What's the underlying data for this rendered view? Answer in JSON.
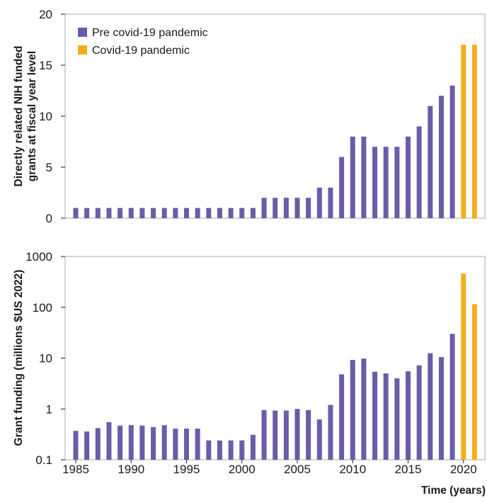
{
  "chart_data": [
    {
      "type": "bar",
      "ylabel_lines": [
        "Directly related NIH funded",
        "grants at fiscal year level"
      ],
      "ylim": [
        0,
        20
      ],
      "yticks": [
        0,
        5,
        10,
        15,
        20
      ],
      "grid": false,
      "legend_position": "top-left",
      "legend": [
        {
          "name": "Pre covid-19 pandemic",
          "color": "#6b5ba8"
        },
        {
          "name": "Covid-19 pandemic",
          "color": "#f5ad1b"
        }
      ],
      "x": [
        1985,
        1986,
        1987,
        1988,
        1989,
        1990,
        1991,
        1992,
        1993,
        1994,
        1995,
        1996,
        1997,
        1998,
        1999,
        2000,
        2001,
        2002,
        2003,
        2004,
        2005,
        2006,
        2007,
        2008,
        2009,
        2010,
        2011,
        2012,
        2013,
        2014,
        2015,
        2016,
        2017,
        2018,
        2019,
        2020,
        2021
      ],
      "series": [
        {
          "name": "Pre covid-19 pandemic",
          "color": "#6b5ba8",
          "values": [
            1,
            1,
            1,
            1,
            1,
            1,
            1,
            1,
            1,
            1,
            1,
            1,
            1,
            1,
            1,
            1,
            1,
            2,
            2,
            2,
            2,
            2,
            3,
            3,
            6,
            8,
            8,
            7,
            7,
            7,
            8,
            9,
            11,
            12,
            13,
            null,
            null
          ]
        },
        {
          "name": "Covid-19 pandemic",
          "color": "#f5ad1b",
          "values": [
            null,
            null,
            null,
            null,
            null,
            null,
            null,
            null,
            null,
            null,
            null,
            null,
            null,
            null,
            null,
            null,
            null,
            null,
            null,
            null,
            null,
            null,
            null,
            null,
            null,
            null,
            null,
            null,
            null,
            null,
            null,
            null,
            null,
            null,
            null,
            17,
            17
          ]
        }
      ]
    },
    {
      "type": "bar",
      "ylabel": "Grant funding (millions $US 2022)",
      "xlabel": "Time (years)",
      "yscale": "log",
      "ylim": [
        0.1,
        1000
      ],
      "yticks": [
        0.1,
        1,
        10,
        100,
        1000
      ],
      "ytick_labels": [
        "0.1",
        "1",
        "10",
        "100",
        "1000"
      ],
      "grid": false,
      "xticks": [
        1985,
        1990,
        1995,
        2000,
        2005,
        2010,
        2015,
        2020
      ],
      "xtick_labels": [
        "1985",
        "1990",
        "1995",
        "2000",
        "2005",
        "2010",
        "2015",
        "2020"
      ],
      "x": [
        1985,
        1986,
        1987,
        1988,
        1989,
        1990,
        1991,
        1992,
        1993,
        1994,
        1995,
        1996,
        1997,
        1998,
        1999,
        2000,
        2001,
        2002,
        2003,
        2004,
        2005,
        2006,
        2007,
        2008,
        2009,
        2010,
        2011,
        2012,
        2013,
        2014,
        2015,
        2016,
        2017,
        2018,
        2019,
        2020,
        2021
      ],
      "series": [
        {
          "name": "Pre covid-19 pandemic",
          "color": "#6b5ba8",
          "values": [
            0.37,
            0.36,
            0.42,
            0.55,
            0.47,
            0.48,
            0.47,
            0.44,
            0.48,
            0.41,
            0.41,
            0.41,
            0.24,
            0.24,
            0.24,
            0.24,
            0.31,
            0.95,
            0.93,
            0.93,
            1.0,
            0.95,
            0.62,
            1.2,
            4.8,
            9.2,
            9.8,
            5.4,
            5.0,
            4.0,
            5.5,
            7.2,
            12.5,
            10.5,
            30,
            null,
            null
          ]
        },
        {
          "name": "Covid-19 pandemic",
          "color": "#f5ad1b",
          "values": [
            null,
            null,
            null,
            null,
            null,
            null,
            null,
            null,
            null,
            null,
            null,
            null,
            null,
            null,
            null,
            null,
            null,
            null,
            null,
            null,
            null,
            null,
            null,
            null,
            null,
            null,
            null,
            null,
            null,
            null,
            null,
            null,
            null,
            null,
            null,
            460,
            115
          ]
        }
      ]
    }
  ]
}
